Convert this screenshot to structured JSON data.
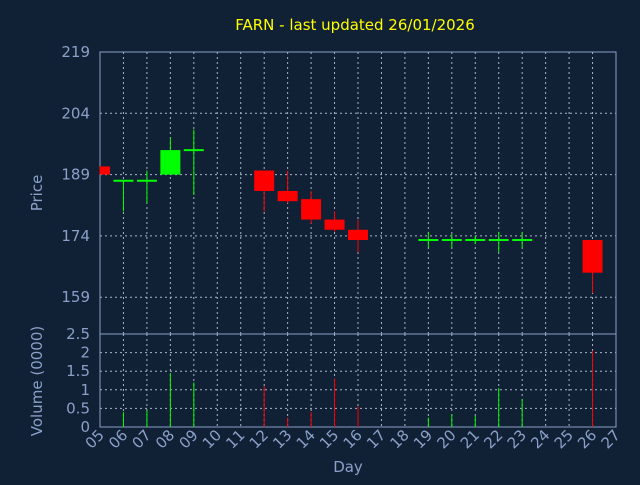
{
  "chart_data": [
    {
      "type": "candlestick",
      "title": "FARN - last updated 26/01/2026",
      "xlabel": "",
      "ylabel": "Price",
      "ylim": [
        150,
        219
      ],
      "y_ticks": [
        219,
        204,
        189,
        174,
        159
      ],
      "grid": true,
      "candles": [
        {
          "day": 5,
          "open": 191,
          "high": 191,
          "low": 189,
          "close": 189
        },
        {
          "day": 6,
          "open": 187.5,
          "high": 187.5,
          "low": 180,
          "close": 187.5
        },
        {
          "day": 7,
          "open": 187.5,
          "high": 190,
          "low": 182,
          "close": 187.5
        },
        {
          "day": 8,
          "open": 189,
          "high": 198,
          "low": 189,
          "close": 195
        },
        {
          "day": 9,
          "open": 195,
          "high": 200,
          "low": 184,
          "close": 195
        },
        {
          "day": 12,
          "open": 190,
          "high": 190,
          "low": 180,
          "close": 185
        },
        {
          "day": 13,
          "open": 185,
          "high": 190,
          "low": 182,
          "close": 182.5
        },
        {
          "day": 14,
          "open": 183,
          "high": 185,
          "low": 177,
          "close": 178
        },
        {
          "day": 15,
          "open": 178,
          "high": 180,
          "low": 175,
          "close": 175.5
        },
        {
          "day": 16,
          "open": 175.5,
          "high": 178,
          "low": 170,
          "close": 173
        },
        {
          "day": 19,
          "open": 173,
          "high": 175,
          "low": 171,
          "close": 173
        },
        {
          "day": 20,
          "open": 173,
          "high": 174.5,
          "low": 171,
          "close": 173
        },
        {
          "day": 21,
          "open": 173,
          "high": 174,
          "low": 172,
          "close": 173
        },
        {
          "day": 22,
          "open": 173,
          "high": 175,
          "low": 170,
          "close": 173
        },
        {
          "day": 23,
          "open": 173,
          "high": 175,
          "low": 171,
          "close": 173
        },
        {
          "day": 26,
          "open": 173,
          "high": 173,
          "low": 160,
          "close": 165
        }
      ]
    },
    {
      "type": "bar",
      "xlabel": "Day",
      "ylabel": "Volume (0000)",
      "ylim": [
        0,
        2.5
      ],
      "y_ticks": [
        "2.5",
        "2",
        "1.5",
        "1",
        "0.5",
        "0"
      ],
      "x_ticks": [
        "05",
        "06",
        "07",
        "08",
        "09",
        "10",
        "11",
        "12",
        "13",
        "14",
        "15",
        "16",
        "17",
        "18",
        "19",
        "20",
        "21",
        "22",
        "23",
        "24",
        "25",
        "26",
        "27"
      ],
      "x_range": [
        5,
        27
      ],
      "grid": true,
      "volumes": [
        {
          "day": 5,
          "value": 0,
          "dir": "down"
        },
        {
          "day": 6,
          "value": 0.4,
          "dir": "up"
        },
        {
          "day": 7,
          "value": 0.45,
          "dir": "up"
        },
        {
          "day": 8,
          "value": 1.45,
          "dir": "up"
        },
        {
          "day": 9,
          "value": 1.2,
          "dir": "up"
        },
        {
          "day": 12,
          "value": 1.1,
          "dir": "down"
        },
        {
          "day": 13,
          "value": 0.25,
          "dir": "down"
        },
        {
          "day": 14,
          "value": 0.4,
          "dir": "down"
        },
        {
          "day": 15,
          "value": 1.3,
          "dir": "down"
        },
        {
          "day": 16,
          "value": 0.55,
          "dir": "down"
        },
        {
          "day": 19,
          "value": 0.25,
          "dir": "up"
        },
        {
          "day": 20,
          "value": 0.35,
          "dir": "up"
        },
        {
          "day": 21,
          "value": 0.3,
          "dir": "up"
        },
        {
          "day": 22,
          "value": 1.05,
          "dir": "up"
        },
        {
          "day": 23,
          "value": 0.75,
          "dir": "up"
        },
        {
          "day": 26,
          "value": 2.05,
          "dir": "down"
        }
      ]
    }
  ],
  "colors": {
    "background": "#102035",
    "axis": "#8aa0c8",
    "text": "#8aa0c8",
    "title": "#ffff00",
    "grid": "#aab4c8",
    "up": "#00ff00",
    "down": "#ff0000"
  }
}
